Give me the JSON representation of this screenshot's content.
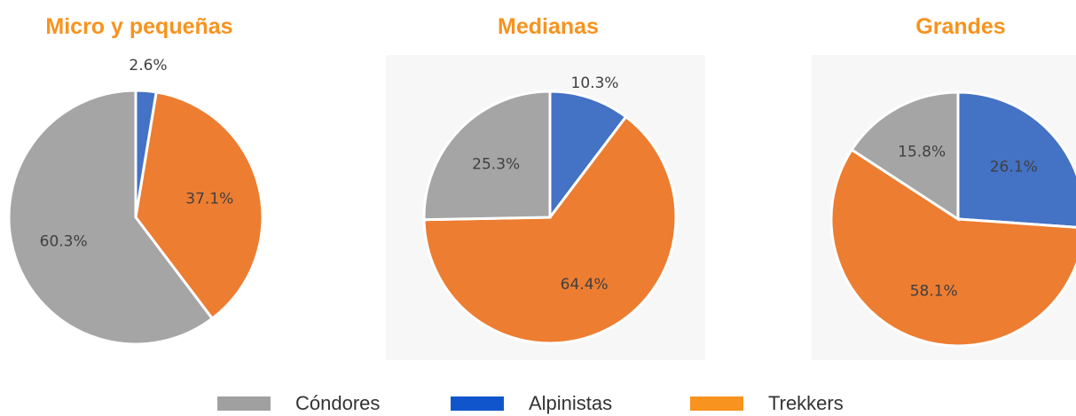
{
  "chart_data": [
    {
      "type": "pie",
      "title": "Micro y pequeñas",
      "categories": [
        "Alpinistas",
        "Trekkers",
        "Cóndores"
      ],
      "values": [
        2.6,
        37.1,
        60.3
      ],
      "value_labels": [
        "2.6%",
        "37.1%",
        "60.3%"
      ],
      "colors": [
        "#4472c4",
        "#ed7d31",
        "#a5a5a5"
      ]
    },
    {
      "type": "pie",
      "title": "Medianas",
      "categories": [
        "Alpinistas",
        "Trekkers",
        "Cóndores"
      ],
      "values": [
        10.3,
        64.4,
        25.3
      ],
      "value_labels": [
        "10.3%",
        "64.4%",
        "25.3%"
      ],
      "colors": [
        "#4472c4",
        "#ed7d31",
        "#a5a5a5"
      ]
    },
    {
      "type": "pie",
      "title": "Grandes",
      "categories": [
        "Alpinistas",
        "Trekkers",
        "Cóndores"
      ],
      "values": [
        26.1,
        58.1,
        15.8
      ],
      "value_labels": [
        "26.1%",
        "58.1%",
        "15.8%"
      ],
      "colors": [
        "#4472c4",
        "#ed7d31",
        "#a5a5a5"
      ]
    }
  ]
}
